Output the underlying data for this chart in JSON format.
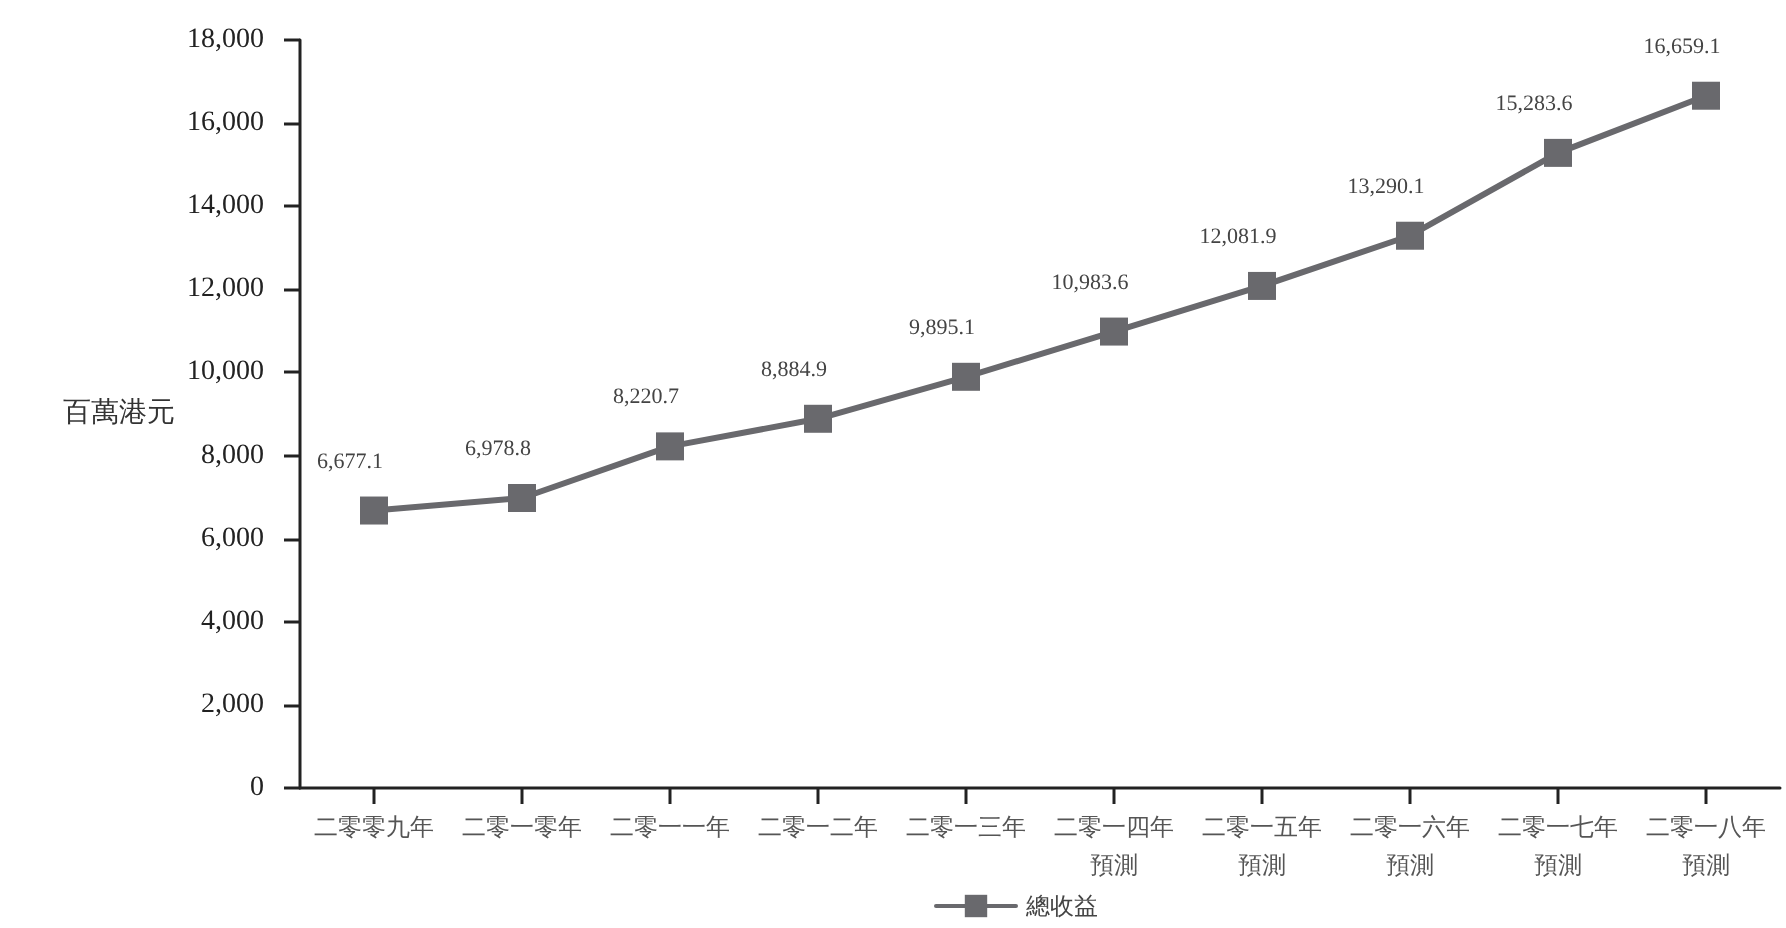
{
  "chart_data": {
    "type": "line",
    "categories": [
      "二零零九年",
      "二零一零年",
      "二零一一年",
      "二零一二年",
      "二零一三年",
      "二零一四年預測",
      "二零一五年預測",
      "二零一六年預測",
      "二零一七年預測",
      "二零一八年預測"
    ],
    "series": [
      {
        "name": "總收益",
        "color": "#69696d",
        "values": [
          6677.1,
          6978.8,
          8220.7,
          8884.9,
          9895.1,
          10983.6,
          12081.9,
          13290.1,
          15283.6,
          16659.1
        ],
        "value_labels": [
          "6,677.1",
          "6,978.8",
          "8,220.7",
          "8,884.9",
          "9,895.1",
          "10,983.6",
          "12,081.9",
          "13,290.1",
          "15,283.6",
          "16,659.1"
        ]
      }
    ],
    "ylabel": "百萬港元",
    "ylim": [
      0,
      18000
    ],
    "yticks": [
      {
        "value": 0,
        "label": "0"
      },
      {
        "value": 2000,
        "label": "2,000"
      },
      {
        "value": 4000,
        "label": "4,000"
      },
      {
        "value": 6000,
        "label": "6,000"
      },
      {
        "value": 8000,
        "label": "8,000"
      },
      {
        "value": 10000,
        "label": "10,000"
      },
      {
        "value": 12000,
        "label": "12,000"
      },
      {
        "value": 14000,
        "label": "14,000"
      },
      {
        "value": 16000,
        "label": "16,000"
      },
      {
        "value": 18000,
        "label": "18,000"
      }
    ],
    "grid": false,
    "legend": "bottom",
    "marker": "square",
    "line_style": "solid"
  }
}
